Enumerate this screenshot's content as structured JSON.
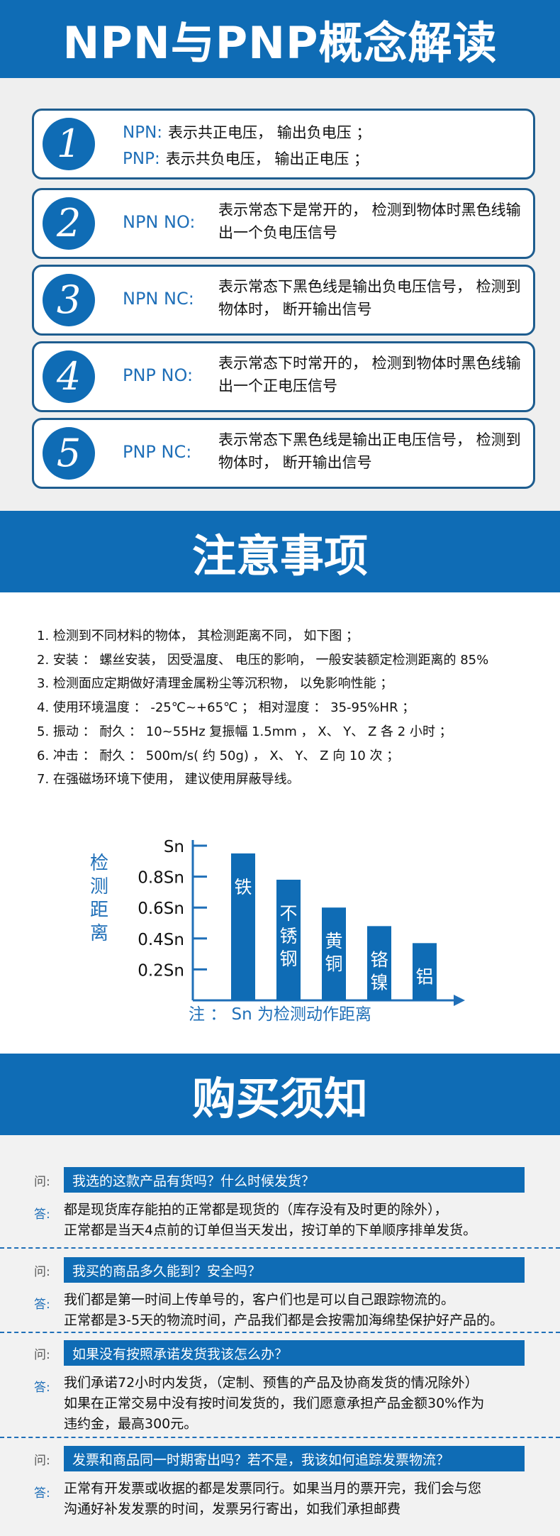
{
  "section1": {
    "title": "NPN与PNP概念解读",
    "cards": [
      {
        "num": "1",
        "lines": [
          {
            "label": "NPN:",
            "text": "表示共正电压， 输出负电压 ；"
          },
          {
            "label": "PNP:",
            "text": "表示共负电压， 输出正电压 ；"
          }
        ]
      },
      {
        "num": "2",
        "key": "NPN NO:",
        "desc": "表示常态下是常开的， 检测到物体时黑色线输出一个负电压信号"
      },
      {
        "num": "3",
        "key": "NPN NC:",
        "desc": "表示常态下黑色线是输出负电压信号， 检测到物体时， 断开输出信号"
      },
      {
        "num": "4",
        "key": "PNP NO:",
        "desc": "表示常态下时常开的， 检测到物体时黑色线输出一个正电压信号"
      },
      {
        "num": "5",
        "key": "PNP NC:",
        "desc": "表示常态下黑色线是输出正电压信号， 检测到物体时， 断开输出信号"
      }
    ]
  },
  "section2": {
    "title": "注意事项",
    "notes": [
      "1. 检测到不同材料的物体， 其检测距离不同， 如下图 ；",
      "2. 安装 ： 螺丝安装， 因受温度、 电压的影响， 一般安装额定检测距离的 85%",
      "3. 检测面应定期做好清理金属粉尘等沉积物， 以免影响性能 ；",
      "4. 使用环境温度 ： -25℃~+65℃ ； 相对湿度 ： 35-95%HR ；",
      "5. 振动 ： 耐久 ： 10~55Hz 复振幅 1.5mm ， X、 Y、 Z 各 2 小时 ；",
      "6. 冲击 ： 耐久 ： 500m/s( 约 50g) ， X、 Y、 Z 向 10 次 ；",
      "7. 在强磁场环境下使用， 建议使用屏蔽导线。"
    ],
    "chart_note": "注 ： Sn 为检测动作距离"
  },
  "chart_data": {
    "type": "bar",
    "ylabel": "检测距离",
    "yticks": [
      "Sn",
      "0.8Sn",
      "0.6Sn",
      "0.4Sn",
      "0.2Sn"
    ],
    "ylim": [
      0,
      1
    ],
    "categories": [
      "铁",
      "不锈钢",
      "黄铜",
      "铬镍",
      "铝"
    ],
    "values": [
      0.95,
      0.78,
      0.6,
      0.48,
      0.37
    ],
    "color": "#0f6cb5",
    "grid": false
  },
  "section3": {
    "title": "购买须知",
    "q_tag": "问:",
    "a_tag": "答:",
    "faqs": [
      {
        "q": "我选的这款产品有货吗？什么时候发货？",
        "a": [
          "都是现货库存能拍的正常都是现货的（库存没有及时更的除外），",
          "正常都是当天4点前的订单但当天发出，按订单的下单顺序排单发货。"
        ]
      },
      {
        "q": "我买的商品多久能到？安全吗？",
        "a": [
          "我们都是第一时间上传单号的，客户们也是可以自己跟踪物流的。",
          "正常都是3-5天的物流时间，产品我们都是会按需加海绵垫保护好产品的。"
        ]
      },
      {
        "q": "如果没有按照承诺发货我该怎么办？",
        "a": [
          "我们承诺72小时内发货，（定制、预售的产品及协商发货的情况除外）",
          "如果在正常交易中没有按时间发货的，我们愿意承担产品金额30%作为",
          "违约金，最高300元。"
        ]
      },
      {
        "q": "发票和商品同一时期寄出吗？若不是，我该如何追踪发票物流？",
        "a": [
          "正常有开发票或收据的都是发票同行。如果当月的票开完，我们会与您",
          "沟通好补发发票的时间，发票另行寄出，如我们承担邮费"
        ]
      }
    ]
  }
}
